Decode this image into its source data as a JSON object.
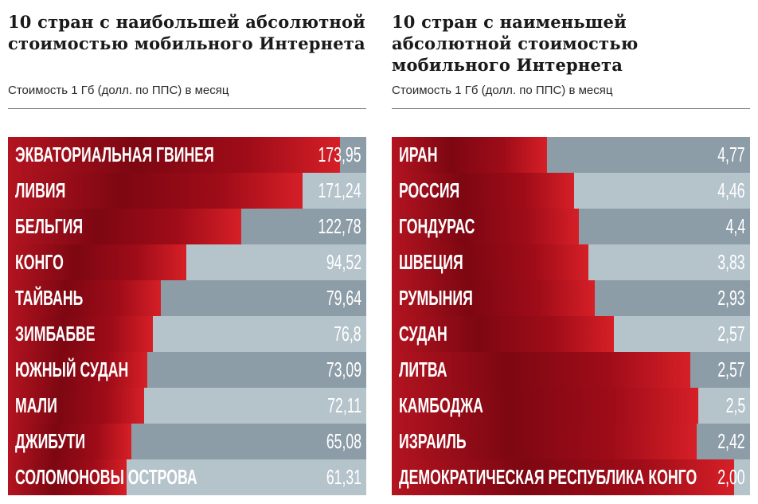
{
  "colors": {
    "bar": "#9b0f19",
    "row_dark": "#8d9da8",
    "row_light": "#b5c3cb",
    "text": "#ffffff"
  },
  "chart_data": [
    {
      "type": "bar",
      "orientation": "horizontal",
      "title": "10 стран с наибольшей абсолютной стоимостью мобильного Интернета",
      "subtitle": "Стоимость 1 Гб (долл. по ППС) в месяц",
      "categories": [
        "ЭКВАТОРИАЛЬНАЯ ГВИНЕЯ",
        "ЛИВИЯ",
        "БЕЛЬГИЯ",
        "КОНГО",
        "ТАЙВАНЬ",
        "ЗИМБАБВЕ",
        "ЮЖНЫЙ СУДАН",
        "МАЛИ",
        "ДЖИБУТИ",
        "СОЛОМОНОВЫ ОСТРОВА"
      ],
      "value_labels": [
        "173,95",
        "171,24",
        "122,78",
        "94,52",
        "79,64",
        "76,8",
        "73,09",
        "72,11",
        "65,08",
        "61,31"
      ],
      "values": [
        173.95,
        171.24,
        122.78,
        94.52,
        79.64,
        76.8,
        73.09,
        72.11,
        65.08,
        61.31
      ]
    },
    {
      "type": "bar",
      "orientation": "horizontal",
      "title": "10 стран с наименьшей абсолютной стоимостью мобильного Интернета",
      "subtitle": "Стоимость 1 Гб (долл. по ППС) в месяц",
      "categories": [
        "ИРАН",
        "РОССИЯ",
        "ГОНДУРАС",
        "ШВЕЦИЯ",
        "РУМЫНИЯ",
        "СУДАН",
        "ЛИТВА",
        "КАМБОДЖА",
        "ИЗРАИЛЬ",
        "ДЕМОКРАТИЧЕСКАЯ РЕСПУБЛИКА КОНГО"
      ],
      "value_labels": [
        "4,77",
        "4,46",
        "4,4",
        "3,83",
        "2,93",
        "2,57",
        "2,57",
        "2,5",
        "2,42",
        "2,00"
      ],
      "values": [
        4.77,
        4.46,
        4.4,
        3.83,
        2.93,
        2.57,
        2.57,
        2.5,
        2.42,
        2.0
      ]
    }
  ]
}
